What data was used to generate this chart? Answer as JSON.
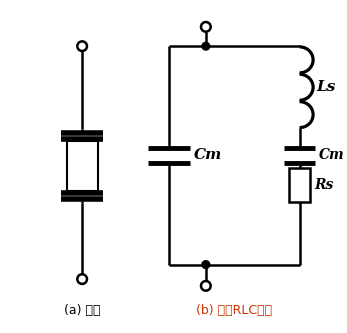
{
  "bg_color": "#ffffff",
  "line_color": "#000000",
  "label_a": "(a) 符号",
  "label_b": "(b) 等效RLC电路",
  "label_b_color": "#cc3300",
  "label_Ls": "Ls",
  "label_Cm_left": "Cm",
  "label_Cm_right": "Cm",
  "label_Rs": "Rs"
}
